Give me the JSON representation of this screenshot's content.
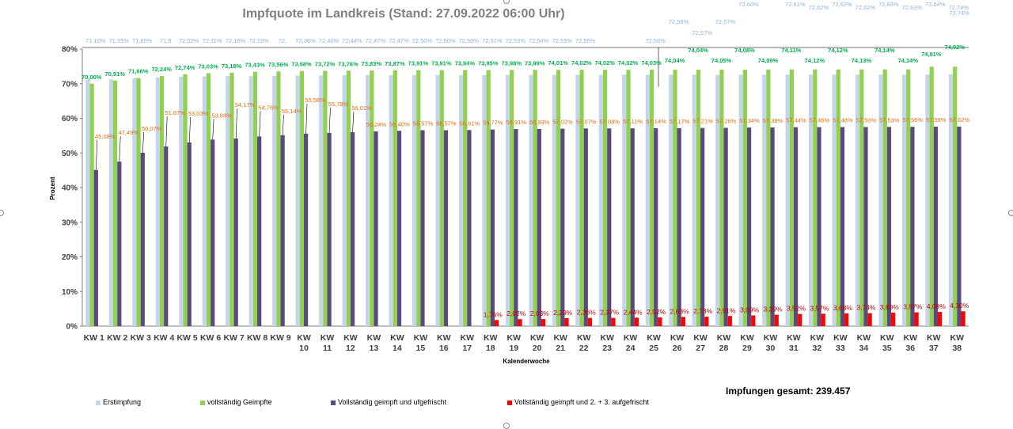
{
  "summary": {
    "total_label": "Impfungen gesamt: 239.457"
  },
  "chart_data": {
    "type": "bar",
    "title": "Impfquote im Landkreis (Stand: 27.09.2022 06:00 Uhr)",
    "xlabel": "Kalenderwoche",
    "ylabel": "Prozent",
    "ylim": [
      0,
      80
    ],
    "yticks": [
      "0%",
      "10%",
      "20%",
      "30%",
      "40%",
      "50%",
      "60%",
      "70%",
      "80%"
    ],
    "grid": false,
    "legend": "bottom",
    "categories": [
      "KW 1",
      "KW 2",
      "KW 3",
      "KW 4",
      "KW 5",
      "KW 6",
      "KW 7",
      "KW 8",
      "KW 9",
      "KW 10",
      "KW 11",
      "KW 12",
      "KW 13",
      "KW 14",
      "KW 15",
      "KW 16",
      "KW 17",
      "KW 18",
      "KW 19",
      "KW 20",
      "KW 21",
      "KW 22",
      "KW 23",
      "KW 24",
      "KW 25",
      "KW 26",
      "KW 27",
      "KW 28",
      "KW 29",
      "KW 30",
      "KW 31",
      "KW 32",
      "KW 33",
      "KW 34",
      "KW 35",
      "KW 36",
      "KW 37",
      "KW 38"
    ],
    "series": [
      {
        "name": "Erstimpfung",
        "color": "#c6d4ea",
        "values": [
          71.1,
          71.35,
          71.65,
          71.8,
          72.02,
          72.11,
          72.18,
          72.19,
          72.2,
          72.36,
          72.4,
          72.44,
          72.47,
          72.47,
          72.5,
          72.5,
          72.5,
          72.51,
          72.53,
          72.54,
          72.55,
          72.55,
          72.56,
          72.56,
          72.56,
          72.56,
          72.57,
          72.57,
          72.6,
          72.6,
          72.61,
          72.62,
          72.62,
          72.62,
          72.63,
          72.63,
          72.64,
          72.74
        ],
        "labels": [
          "71,10%",
          "71,35%",
          "71,65%",
          "71,8",
          "72,02%",
          "72,11%",
          "72,18%",
          "72,19%",
          "72,",
          "72,36%",
          "72,40%",
          "72,44%",
          "72,47%",
          "72,47%",
          "72,50%",
          "72,50%",
          "72,50%",
          "72,51%",
          "72,53%",
          "72,54%",
          "72,55%",
          "72,55%",
          "",
          "",
          "72,56%",
          "72,56%",
          "72,57%",
          "72,57%",
          "72,60%",
          "",
          "72,61%",
          "72,62%",
          "72,62%",
          "72,62%",
          "72,63%",
          "72,63%",
          "72,64%",
          "72,74%"
        ],
        "extra_label": "72,74%"
      },
      {
        "name": "vollständig Geimpfte",
        "color": "#92d050",
        "values": [
          70.0,
          70.91,
          71.66,
          72.24,
          72.74,
          73.03,
          73.18,
          73.43,
          73.56,
          73.68,
          73.72,
          73.76,
          73.83,
          73.87,
          73.91,
          73.91,
          73.94,
          73.95,
          73.98,
          73.99,
          74.01,
          74.02,
          74.02,
          74.02,
          74.03,
          74.04,
          74.04,
          74.05,
          74.08,
          74.09,
          74.11,
          74.12,
          74.12,
          74.13,
          74.14,
          74.14,
          74.91,
          74.92
        ],
        "labels": [
          "70,00%",
          "70,91%",
          "71,66%",
          "72,24%",
          "72,74%",
          "73,03%",
          "73,18%",
          "73,43%",
          "73,56%",
          "73,68%",
          "73,72%",
          "73,76%",
          "73,83%",
          "73,87%",
          "73,91%",
          "73,91%",
          "73,94%",
          "73,95%",
          "73,98%",
          "73,99%",
          "74,01%",
          "74,02%",
          "74,02%",
          "74,02%",
          "74,03%",
          "74,04%",
          "74,04%",
          "74,05%",
          "74,08%",
          "74,09%",
          "74,11%",
          "74,12%",
          "74,12%",
          "74,13%",
          "74,14%",
          "74,14%",
          "74,91%",
          "74,92%"
        ]
      },
      {
        "name": "Vollständig geimpft und ufgefrischt",
        "color": "#5b4a7e",
        "values": [
          45.08,
          47.49,
          50.07,
          51.87,
          53.03,
          53.88,
          54.17,
          54.76,
          55.14,
          55.58,
          55.79,
          56.01,
          56.24,
          56.4,
          56.57,
          56.57,
          56.61,
          56.77,
          56.91,
          56.93,
          57.02,
          57.07,
          57.08,
          57.11,
          57.14,
          57.17,
          57.21,
          57.26,
          57.34,
          57.38,
          57.44,
          57.46,
          57.48,
          57.5,
          57.53,
          57.56,
          57.59,
          57.62
        ],
        "labels": [
          "45,08%",
          "47,49%",
          "50,07%",
          "51,87%",
          "53,03%",
          "53,88%",
          "54,17%",
          "54,76%",
          "55,14%",
          "55,58%",
          "55,79%",
          "56,01%",
          "56,24%",
          "56,40%",
          "56,57%",
          "56,57%",
          "56,61%",
          "56,77%",
          "56,91%",
          "56,93%",
          "57,02%",
          "57,07%",
          "57,08%",
          "57,11%",
          "57,14%",
          "57,17%",
          "57,21%",
          "57,26%",
          "57,34%",
          "57,38%",
          "57,44%",
          "57,46%",
          "57,48%",
          "57,50%",
          "57,53%",
          "57,56%",
          "57,59%",
          "57,62%"
        ]
      },
      {
        "name": "Vollständig geimpft und 2. + 3. aufgefrischt",
        "color": "#ff0000",
        "values": [
          null,
          null,
          null,
          null,
          null,
          null,
          null,
          null,
          null,
          null,
          null,
          null,
          null,
          null,
          null,
          null,
          null,
          1.76,
          2.02,
          2.03,
          2.29,
          2.36,
          2.37,
          2.44,
          2.52,
          2.63,
          2.73,
          2.91,
          3.09,
          3.29,
          3.52,
          3.57,
          3.68,
          3.74,
          3.89,
          3.97,
          4.09,
          4.3
        ],
        "labels": [
          "",
          "",
          "",
          "",
          "",
          "",
          "",
          "",
          "",
          "",
          "",
          "",
          "",
          "",
          "",
          "",
          "",
          "1,76%",
          "2,02%",
          "2,03%",
          "2,29%",
          "2,36%",
          "2,37%",
          "2,44%",
          "2,52%",
          "2,63%",
          "2,73%",
          "2,91%",
          "3,09%",
          "3,29%",
          "3,52%",
          "3,57%",
          "3,68%",
          "3,74%",
          "3,89%",
          "3,97%",
          "4,09%",
          "4,30%"
        ]
      }
    ]
  }
}
